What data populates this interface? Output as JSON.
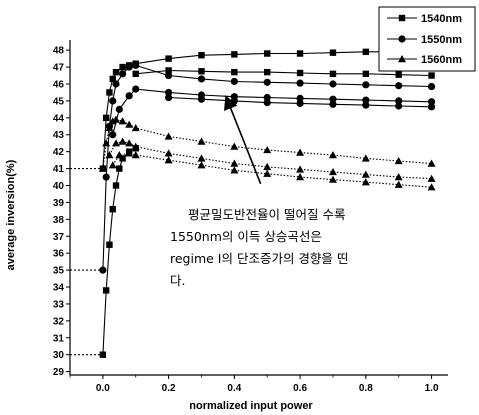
{
  "chart_data": {
    "type": "line",
    "xlabel": "normalized input power",
    "ylabel": "average inversion(%)",
    "xlim": [
      -0.1,
      1.05
    ],
    "ylim": [
      28.8,
      48.6
    ],
    "xticks": [
      0.0,
      0.2,
      0.4,
      0.6,
      0.8,
      1.0
    ],
    "xtick_labels": [
      "0.0",
      "0.2",
      "0.4",
      "0.6",
      "0.8",
      "1.0"
    ],
    "yticks": [
      29,
      30,
      31,
      32,
      33,
      34,
      35,
      36,
      37,
      38,
      39,
      40,
      41,
      42,
      43,
      44,
      45,
      46,
      47,
      48
    ],
    "ytick_labels": [
      "29",
      "30",
      "31",
      "32",
      "33",
      "34",
      "35",
      "36",
      "37",
      "38",
      "39",
      "40",
      "41",
      "42",
      "43",
      "44",
      "45",
      "46",
      "47",
      "48"
    ],
    "reference_lines": [
      30,
      35,
      41
    ],
    "legend": {
      "placement": "top-right",
      "entries": [
        {
          "label": "1540nm",
          "marker": "square"
        },
        {
          "label": "1550nm",
          "marker": "circle"
        },
        {
          "label": "1560nm",
          "marker": "triangle"
        }
      ]
    },
    "series": [
      {
        "marker": "square",
        "style": "solid",
        "points": [
          [
            0.0,
            30.0
          ],
          [
            0.01,
            33.8
          ],
          [
            0.02,
            36.5
          ],
          [
            0.03,
            38.6
          ],
          [
            0.04,
            40.0
          ],
          [
            0.05,
            41.0
          ],
          [
            0.06,
            41.6
          ],
          [
            0.08,
            42.0
          ],
          [
            0.1,
            42.2
          ]
        ]
      },
      {
        "marker": "square",
        "style": "solid",
        "points": [
          [
            0.0,
            41.0
          ],
          [
            0.01,
            44.0
          ],
          [
            0.02,
            45.5
          ],
          [
            0.03,
            46.3
          ],
          [
            0.04,
            46.7
          ],
          [
            0.06,
            47.0
          ],
          [
            0.08,
            47.1
          ],
          [
            0.1,
            47.2
          ],
          [
            0.2,
            47.5
          ],
          [
            0.3,
            47.7
          ],
          [
            0.4,
            47.75
          ],
          [
            0.5,
            47.8
          ],
          [
            0.6,
            47.8
          ],
          [
            0.7,
            47.85
          ],
          [
            0.8,
            47.9
          ],
          [
            0.9,
            47.9
          ],
          [
            1.0,
            47.95
          ]
        ]
      },
      {
        "marker": "square",
        "style": "solid",
        "points": [
          [
            0.1,
            46.6
          ],
          [
            0.2,
            46.8
          ],
          [
            0.3,
            46.75
          ],
          [
            0.4,
            46.7
          ],
          [
            0.5,
            46.7
          ],
          [
            0.6,
            46.65
          ],
          [
            0.7,
            46.6
          ],
          [
            0.8,
            46.6
          ],
          [
            0.9,
            46.55
          ],
          [
            1.0,
            46.5
          ]
        ]
      },
      {
        "marker": "circle",
        "style": "solid",
        "points": [
          [
            0.0,
            35.0
          ],
          [
            0.01,
            40.5
          ],
          [
            0.02,
            43.5
          ],
          [
            0.03,
            45.0
          ],
          [
            0.04,
            46.0
          ],
          [
            0.06,
            46.6
          ],
          [
            0.08,
            47.0
          ],
          [
            0.1,
            47.1
          ],
          [
            0.2,
            46.5
          ],
          [
            0.3,
            46.3
          ],
          [
            0.4,
            46.15
          ],
          [
            0.5,
            46.1
          ],
          [
            0.6,
            46.05
          ],
          [
            0.7,
            46.0
          ],
          [
            0.8,
            45.95
          ],
          [
            0.9,
            45.9
          ],
          [
            1.0,
            45.85
          ]
        ]
      },
      {
        "marker": "circle",
        "style": "solid",
        "points": [
          [
            0.03,
            43.0
          ],
          [
            0.05,
            44.5
          ],
          [
            0.08,
            45.3
          ],
          [
            0.1,
            45.7
          ],
          [
            0.2,
            45.5
          ],
          [
            0.3,
            45.35
          ],
          [
            0.4,
            45.25
          ],
          [
            0.5,
            45.2
          ],
          [
            0.6,
            45.15
          ],
          [
            0.7,
            45.1
          ],
          [
            0.8,
            45.05
          ],
          [
            0.9,
            45.0
          ],
          [
            1.0,
            44.95
          ]
        ]
      },
      {
        "marker": "circle",
        "style": "solid",
        "points": [
          [
            0.2,
            45.2
          ],
          [
            0.3,
            45.1
          ],
          [
            0.4,
            45.0
          ],
          [
            0.5,
            44.9
          ],
          [
            0.6,
            44.85
          ],
          [
            0.7,
            44.8
          ],
          [
            0.8,
            44.75
          ],
          [
            0.9,
            44.7
          ],
          [
            1.0,
            44.65
          ]
        ]
      },
      {
        "marker": "triangle",
        "style": "dotted",
        "points": [
          [
            0.0,
            41.0
          ],
          [
            0.01,
            42.5
          ],
          [
            0.02,
            43.4
          ],
          [
            0.03,
            43.8
          ],
          [
            0.04,
            43.9
          ],
          [
            0.06,
            43.8
          ],
          [
            0.08,
            43.6
          ],
          [
            0.1,
            43.4
          ],
          [
            0.2,
            42.9
          ],
          [
            0.3,
            42.6
          ],
          [
            0.4,
            42.3
          ],
          [
            0.5,
            42.1
          ],
          [
            0.6,
            41.95
          ],
          [
            0.7,
            41.8
          ],
          [
            0.8,
            41.6
          ],
          [
            0.9,
            41.45
          ],
          [
            1.0,
            41.3
          ]
        ]
      },
      {
        "marker": "triangle",
        "style": "dotted",
        "points": [
          [
            0.02,
            41.8
          ],
          [
            0.04,
            42.5
          ],
          [
            0.06,
            42.6
          ],
          [
            0.08,
            42.5
          ],
          [
            0.1,
            42.3
          ],
          [
            0.2,
            41.9
          ],
          [
            0.3,
            41.6
          ],
          [
            0.4,
            41.3
          ],
          [
            0.5,
            41.1
          ],
          [
            0.6,
            40.95
          ],
          [
            0.7,
            40.8
          ],
          [
            0.8,
            40.65
          ],
          [
            0.9,
            40.5
          ],
          [
            1.0,
            40.4
          ]
        ]
      },
      {
        "marker": "triangle",
        "style": "dotted",
        "points": [
          [
            0.03,
            41.2
          ],
          [
            0.05,
            41.8
          ],
          [
            0.08,
            41.9
          ],
          [
            0.1,
            41.8
          ],
          [
            0.2,
            41.5
          ],
          [
            0.3,
            41.2
          ],
          [
            0.4,
            40.9
          ],
          [
            0.5,
            40.7
          ],
          [
            0.6,
            40.5
          ],
          [
            0.7,
            40.35
          ],
          [
            0.8,
            40.2
          ],
          [
            0.9,
            40.05
          ],
          [
            1.0,
            39.9
          ]
        ]
      }
    ],
    "annotation": {
      "lines": [
        "평균밀도반전율이 떨어질 수록",
        "1550nm의 이득 상승곡선은",
        "regime I의 단조증가의 경향을 띤",
        "다."
      ],
      "arrow_from": [
        0.48,
        40.1
      ],
      "arrow_to": [
        0.38,
        45.0
      ]
    }
  }
}
